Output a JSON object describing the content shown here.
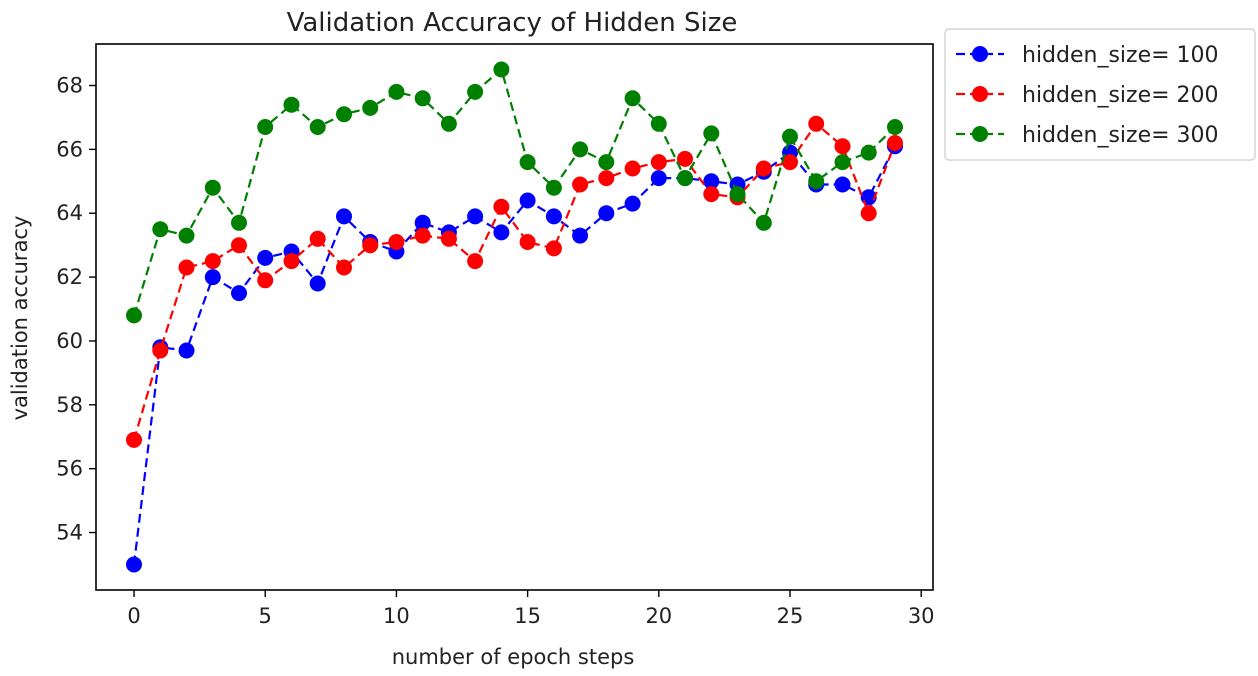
{
  "chart_data": {
    "type": "line",
    "title": "Validation Accuracy of Hidden Size",
    "xlabel": "number of epoch steps",
    "ylabel": "validation accuracy",
    "xlim": [
      -1.45,
      30.45
    ],
    "ylim": [
      52.2,
      69.3
    ],
    "xticks": [
      0,
      5,
      10,
      15,
      20,
      25,
      30
    ],
    "yticks": [
      54,
      56,
      58,
      60,
      62,
      64,
      66,
      68
    ],
    "grid": false,
    "legend_position": "outside-top-right",
    "x": [
      0,
      1,
      2,
      3,
      4,
      5,
      6,
      7,
      8,
      9,
      10,
      11,
      12,
      13,
      14,
      15,
      16,
      17,
      18,
      19,
      20,
      21,
      22,
      23,
      24,
      25,
      26,
      27,
      28,
      29
    ],
    "series": [
      {
        "name": "hidden_size= 100",
        "color": "#0000ff",
        "style": "dashed-circle",
        "values": [
          53.0,
          59.8,
          59.7,
          62.0,
          61.5,
          62.6,
          62.8,
          61.8,
          63.9,
          63.1,
          62.8,
          63.7,
          63.4,
          63.9,
          63.4,
          64.4,
          63.9,
          63.3,
          64.0,
          64.3,
          65.1,
          65.1,
          65.0,
          64.9,
          65.3,
          65.9,
          64.9,
          64.9,
          64.5,
          66.1
        ]
      },
      {
        "name": "hidden_size= 200",
        "color": "#ff0000",
        "style": "dashed-circle",
        "values": [
          56.9,
          59.7,
          62.3,
          62.5,
          63.0,
          61.9,
          62.5,
          63.2,
          62.3,
          63.0,
          63.1,
          63.3,
          63.2,
          62.5,
          64.2,
          63.1,
          62.9,
          64.9,
          65.1,
          65.4,
          65.6,
          65.7,
          64.6,
          64.5,
          65.4,
          65.6,
          66.8,
          66.1,
          64.0,
          66.2
        ]
      },
      {
        "name": "hidden_size= 300",
        "color": "#008000",
        "style": "dashed-circle",
        "values": [
          60.8,
          63.5,
          63.3,
          64.8,
          63.7,
          66.7,
          67.4,
          66.7,
          67.1,
          67.3,
          67.8,
          67.6,
          66.8,
          67.8,
          68.5,
          65.6,
          64.8,
          66.0,
          65.6,
          67.6,
          66.8,
          65.1,
          66.5,
          64.6,
          63.7,
          66.4,
          65.0,
          65.6,
          65.9,
          66.7
        ]
      }
    ]
  }
}
